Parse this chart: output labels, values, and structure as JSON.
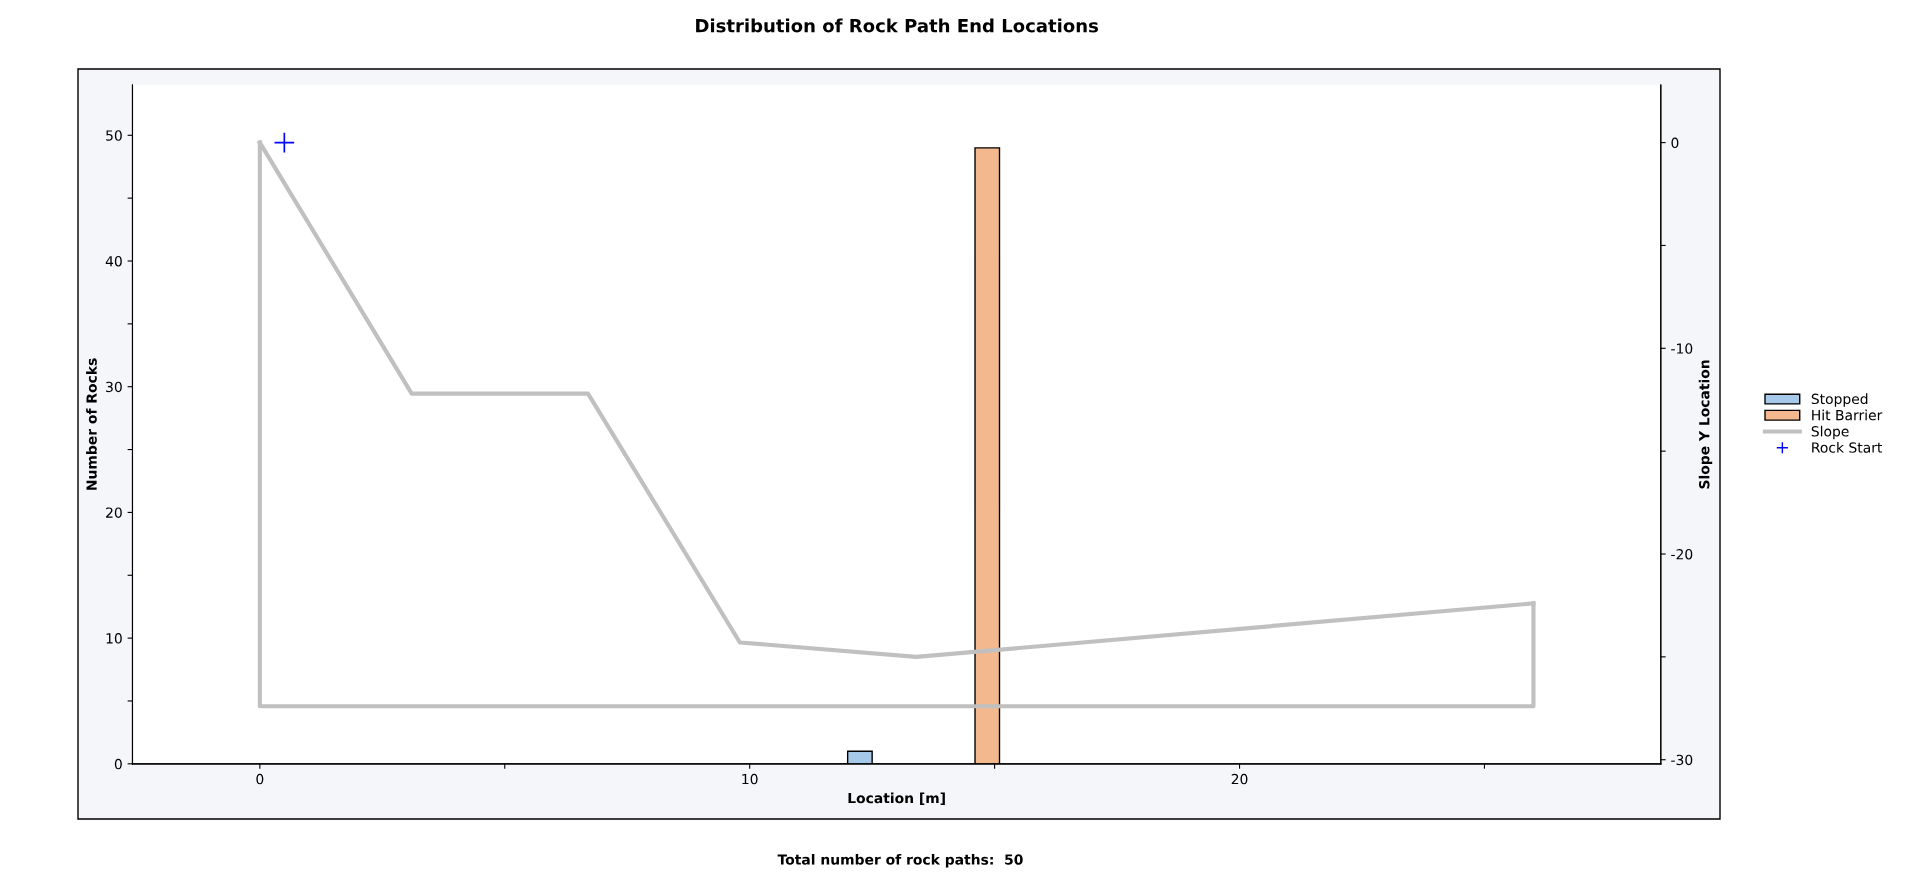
{
  "chart_data": {
    "type": "bar",
    "title": "Distribution of Rock Path End Locations",
    "xlabel": "Location [m]",
    "ylabel": "Number of Rocks",
    "y2label": "Slope Y Location",
    "annotations": [
      "Total number of rock paths:  50"
    ],
    "series": [
      {
        "name": "Stopped",
        "color": "#a6c9ea",
        "x": [
          12.25
        ],
        "values": [
          1
        ]
      },
      {
        "name": "Hit Barrier",
        "color": "#f4b88e",
        "x": [
          14.85
        ],
        "values": [
          49
        ]
      },
      {
        "name": "Slope",
        "type": "line",
        "axis": "y2",
        "color": "#c0c0c0",
        "x": [
          0,
          3.1,
          6.7,
          9.8,
          13.4,
          26.0
        ],
        "values": [
          0,
          -12.2,
          -12.2,
          -24.3,
          -25.0,
          -22.4
        ]
      },
      {
        "type": "line",
        "axis": "y2",
        "color": "#c0c0c0",
        "x": [
          26.0,
          26.0,
          0,
          0
        ],
        "values": [
          -22.4,
          -27.4,
          -27.4,
          0
        ]
      },
      {
        "name": "Rock Start",
        "type": "scatter",
        "axis": "y2",
        "color": "#0000ff",
        "marker": "cross",
        "x": [
          0.5
        ],
        "values": [
          0
        ]
      }
    ],
    "xlim": [
      -2.6,
      28.6
    ],
    "xticks": [
      0,
      {
        "value": 5,
        "label": null
      },
      10,
      {
        "value": 15,
        "label": null
      },
      20,
      {
        "value": 25,
        "label": null
      }
    ],
    "ylim": [
      0,
      54
    ],
    "yticks": [
      0,
      {
        "value": 5,
        "label": null
      },
      10,
      {
        "value": 15,
        "label": null
      },
      20,
      {
        "value": 25,
        "label": null
      },
      30,
      {
        "value": 35,
        "label": null
      },
      40,
      {
        "value": 45,
        "label": null
      },
      50
    ],
    "y2lim": [
      -30.2,
      2.8
    ],
    "y2ticks": [
      0,
      {
        "value": -5,
        "label": null
      },
      -10,
      {
        "value": -15,
        "label": null
      },
      -20,
      {
        "value": -25,
        "label": null
      },
      -30
    ],
    "grid": false,
    "legend": "right"
  }
}
